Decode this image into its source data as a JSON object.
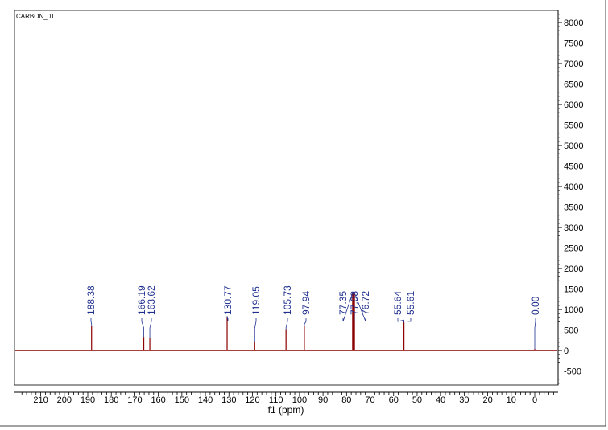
{
  "chart_data": {
    "type": "line",
    "title": "CARBON_01",
    "xlabel": "f1 (ppm)",
    "ylabel": "",
    "xlim": [
      220,
      -10
    ],
    "ylim": [
      -800,
      8300
    ],
    "x_reversed": true,
    "x_ticks": [
      210,
      200,
      190,
      180,
      170,
      160,
      150,
      140,
      130,
      120,
      110,
      100,
      90,
      80,
      70,
      60,
      50,
      40,
      30,
      20,
      10,
      0
    ],
    "y_ticks": [
      8000,
      7500,
      7000,
      6500,
      6000,
      5500,
      5000,
      4500,
      4000,
      3500,
      3000,
      2500,
      2000,
      1500,
      1000,
      500,
      0,
      -500
    ],
    "y_axis_side": "right",
    "grid": false,
    "line_color": "#8b0000",
    "label_color": "#1f2f8f",
    "peaks": [
      {
        "ppm": 188.38,
        "height": 600
      },
      {
        "ppm": 166.19,
        "height": 330
      },
      {
        "ppm": 163.62,
        "height": 300
      },
      {
        "ppm": 130.77,
        "height": 800
      },
      {
        "ppm": 119.05,
        "height": 200
      },
      {
        "ppm": 105.73,
        "height": 520
      },
      {
        "ppm": 97.94,
        "height": 600
      },
      {
        "ppm": 77.35,
        "height": 1380
      },
      {
        "ppm": 77.03,
        "height": 1400
      },
      {
        "ppm": 76.72,
        "height": 1380
      },
      {
        "ppm": 55.64,
        "height": 700
      },
      {
        "ppm": 55.61,
        "height": 680
      },
      {
        "ppm": 0.0,
        "height": 40
      }
    ],
    "peak_labels": [
      {
        "text": "188.38",
        "ppms": [
          "188.38"
        ]
      },
      {
        "text": "166.19",
        "ppms": [
          "166.19"
        ]
      },
      {
        "text": "163.62",
        "ppms": [
          "163.62"
        ]
      },
      {
        "text": "130.77",
        "ppms": [
          "130.77"
        ]
      },
      {
        "text": "119.05",
        "ppms": [
          "119.05"
        ]
      },
      {
        "text": "105.73",
        "ppms": [
          "105.73"
        ]
      },
      {
        "text": "97.94",
        "ppms": [
          "97.94"
        ]
      },
      {
        "text": "77.35",
        "ppms": [
          "77.35"
        ]
      },
      {
        "text": "77.03",
        "ppms": [
          "77.03"
        ]
      },
      {
        "text": "76.72",
        "ppms": [
          "76.72"
        ]
      },
      {
        "text": "55.64",
        "ppms": [
          "55.64"
        ]
      },
      {
        "text": "55.61",
        "ppms": [
          "55.61"
        ]
      },
      {
        "text": "0.00",
        "ppms": [
          "0.00"
        ]
      }
    ]
  }
}
